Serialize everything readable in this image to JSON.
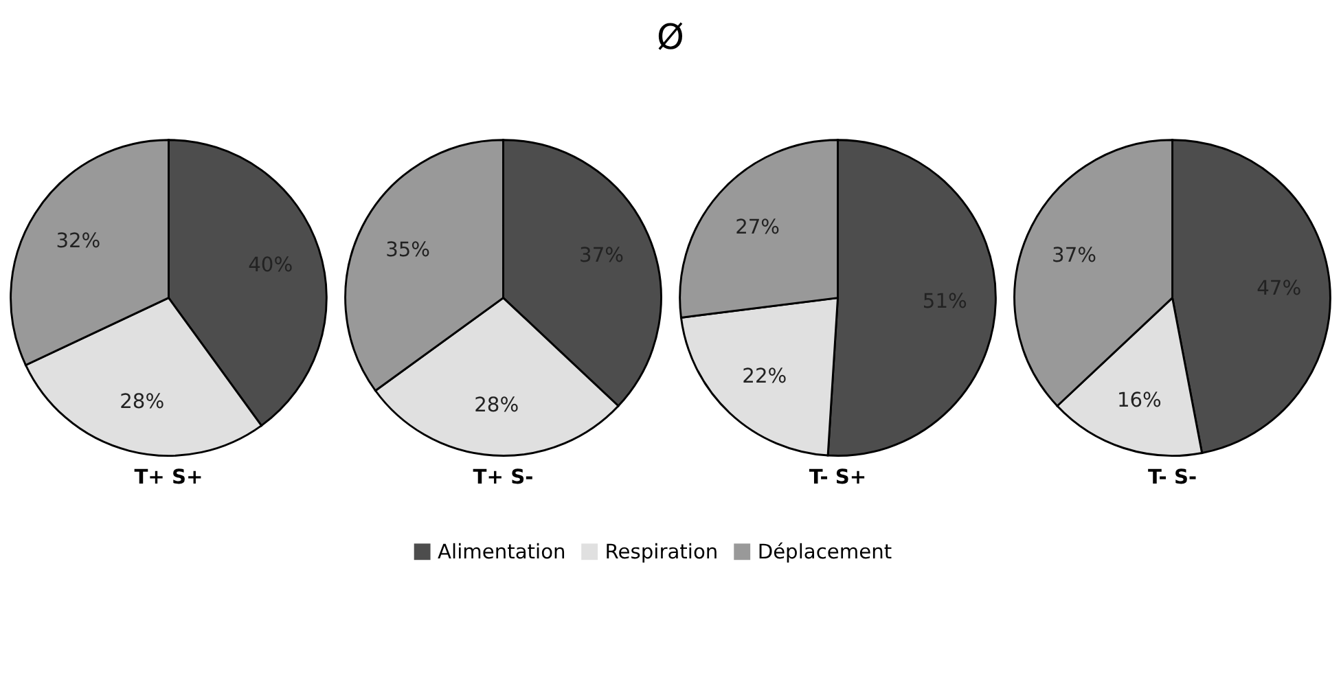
{
  "chart_data": [
    {
      "type": "pie",
      "title": "Ø",
      "xlabel": "T+ S+",
      "categories": [
        "Alimentation",
        "Respiration",
        "Déplacement"
      ],
      "values": [
        40,
        28,
        32
      ],
      "value_labels": [
        "40%",
        "28%",
        "32%"
      ],
      "colors": [
        "#4d4d4d",
        "#e0e0e0",
        "#999999"
      ],
      "legend": "bottom"
    },
    {
      "type": "pie",
      "xlabel": "T+ S-",
      "categories": [
        null,
        null,
        null
      ],
      "values": [
        37,
        28,
        35
      ],
      "value_labels": [
        "37%",
        "28%",
        "35%"
      ],
      "colors": [
        "#4d4d4d",
        "#e0e0e0",
        "#999999"
      ]
    },
    {
      "type": "pie",
      "xlabel": "T- S+",
      "categories": [
        null,
        null,
        null
      ],
      "values": [
        51,
        22,
        27
      ],
      "value_labels": [
        "51%",
        "22%",
        "27%"
      ],
      "colors": [
        "#4d4d4d",
        "#e0e0e0",
        "#999999"
      ]
    },
    {
      "type": "pie",
      "xlabel": "T- S-",
      "categories": [
        null,
        null,
        null
      ],
      "values": [
        47,
        16,
        37
      ],
      "value_labels": [
        "47%",
        "16%",
        "37%"
      ],
      "colors": [
        "#4d4d4d",
        "#e0e0e0",
        "#999999"
      ]
    }
  ]
}
